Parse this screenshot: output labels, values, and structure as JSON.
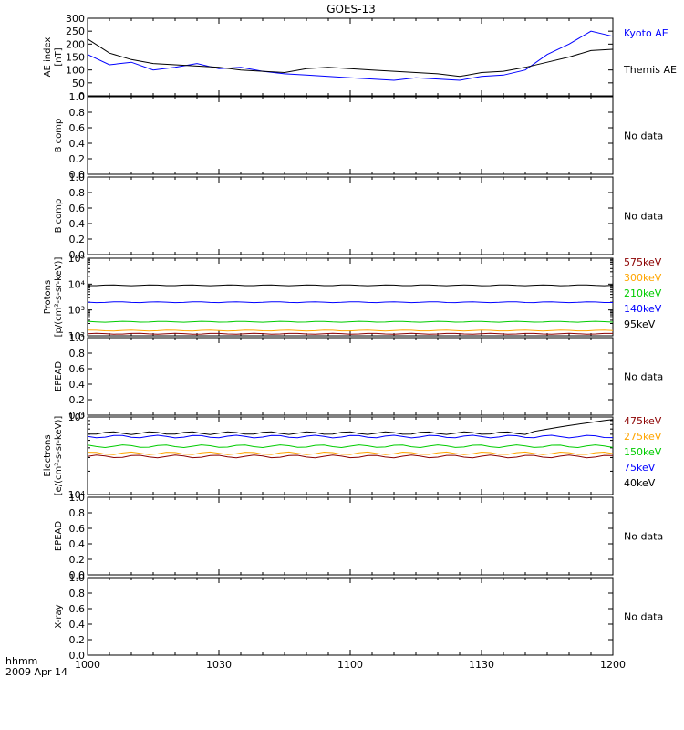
{
  "title": "GOES-13",
  "time_axis": {
    "ticks": [
      "1000",
      "1030",
      "1100",
      "1130",
      "1200"
    ],
    "unit_label": "hhmm",
    "date_label": "2009 Apr 14"
  },
  "no_data_text": "No data",
  "colors": {
    "kyoto": "#0000ff",
    "themis": "#000000",
    "p575": "#8b0000",
    "p300": "#ffa500",
    "p210": "#00cc00",
    "p140": "#0000ff",
    "p95": "#000000",
    "e475": "#8b0000",
    "e275": "#ffa500",
    "e150": "#00cc00",
    "e75": "#0000ff",
    "e40": "#000000"
  },
  "chart_data": [
    {
      "type": "line",
      "id": "ae",
      "ylabel": [
        "AE index",
        "[nT]"
      ],
      "ylim": [
        0,
        300
      ],
      "yticks": [
        "0",
        "50",
        "100",
        "150",
        "200",
        "250",
        "300"
      ],
      "x_minutes": [
        0,
        5,
        10,
        15,
        20,
        25,
        30,
        35,
        40,
        45,
        50,
        55,
        60,
        65,
        70,
        75,
        80,
        85,
        90,
        95,
        100,
        105,
        110,
        115,
        120
      ],
      "series": [
        {
          "name": "Kyoto AE",
          "color_key": "kyoto",
          "values": [
            160,
            120,
            130,
            100,
            110,
            125,
            105,
            110,
            95,
            85,
            80,
            75,
            70,
            65,
            60,
            70,
            65,
            60,
            75,
            80,
            100,
            160,
            200,
            250,
            230
          ]
        },
        {
          "name": "Themis AE",
          "color_key": "themis",
          "values": [
            220,
            165,
            140,
            125,
            120,
            115,
            110,
            100,
            95,
            90,
            105,
            110,
            105,
            100,
            95,
            90,
            85,
            75,
            90,
            95,
            110,
            130,
            150,
            175,
            180
          ]
        }
      ]
    },
    {
      "type": "line",
      "id": "bcomp1",
      "ylabel": [
        "B comp"
      ],
      "ylim": [
        0,
        1
      ],
      "yticks": [
        "0.0",
        "0.2",
        "0.4",
        "0.6",
        "0.8",
        "1.0"
      ],
      "status": "No data"
    },
    {
      "type": "line",
      "id": "bcomp2",
      "ylabel": [
        "B comp"
      ],
      "ylim": [
        0,
        1
      ],
      "yticks": [
        "0.0",
        "0.2",
        "0.4",
        "0.6",
        "0.8",
        "1.0"
      ],
      "status": "No data"
    },
    {
      "type": "line",
      "id": "protons",
      "ylabel": [
        "Protons",
        "[p/(cm²-s-sr-keV)]"
      ],
      "yscale": "log",
      "ylim": [
        100,
        100000
      ],
      "yticks": [
        "10²",
        "10³",
        "10⁴",
        "10⁵"
      ],
      "series": [
        {
          "name": "575keV",
          "color_key": "p575",
          "level": 120
        },
        {
          "name": "300keV",
          "color_key": "p300",
          "level": 160
        },
        {
          "name": "210keV",
          "color_key": "p210",
          "level": 350
        },
        {
          "name": "140keV",
          "color_key": "p140",
          "level": 2000
        },
        {
          "name": "95keV",
          "color_key": "p95",
          "level": 9000
        }
      ]
    },
    {
      "type": "line",
      "id": "epead1",
      "ylabel": [
        "EPEAD"
      ],
      "ylim": [
        0,
        1
      ],
      "yticks": [
        "0.0",
        "0.2",
        "0.4",
        "0.6",
        "0.8",
        "1.0"
      ],
      "status": "No data"
    },
    {
      "type": "line",
      "id": "electrons",
      "ylabel": [
        "Electrons",
        "[e/(cm²-s-sr-keV)]"
      ],
      "yscale": "log",
      "ylim": [
        10000,
        100000
      ],
      "yticks": [
        "10⁴",
        "10⁵"
      ],
      "series": [
        {
          "name": "475keV",
          "color_key": "e475",
          "level": 31000
        },
        {
          "name": "275keV",
          "color_key": "e275",
          "level": 34000
        },
        {
          "name": "150keV",
          "color_key": "e150",
          "level": 42000
        },
        {
          "name": "75keV",
          "color_key": "e75",
          "level": 56000
        },
        {
          "name": "40keV",
          "color_key": "e40",
          "level": 62000
        }
      ]
    },
    {
      "type": "line",
      "id": "epead2",
      "ylabel": [
        "EPEAD"
      ],
      "ylim": [
        0,
        1
      ],
      "yticks": [
        "0.0",
        "0.2",
        "0.4",
        "0.6",
        "0.8",
        "1.0"
      ],
      "status": "No data"
    },
    {
      "type": "line",
      "id": "xray",
      "ylabel": [
        "X-ray"
      ],
      "ylim": [
        0,
        1
      ],
      "yticks": [
        "0.0",
        "0.2",
        "0.4",
        "0.6",
        "0.8",
        "1.0"
      ],
      "status": "No data"
    }
  ]
}
